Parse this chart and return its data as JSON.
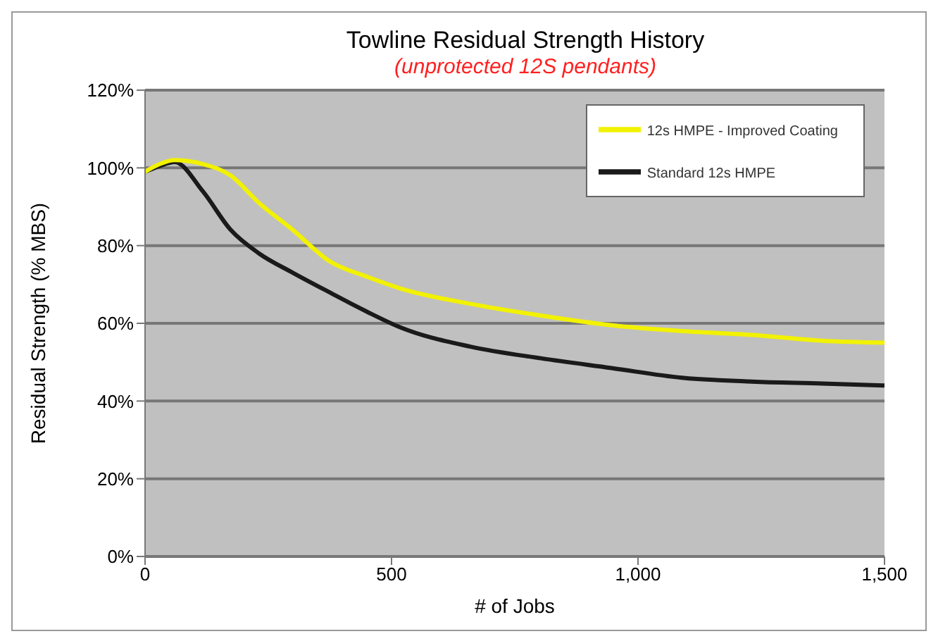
{
  "chart_data": {
    "type": "line",
    "title": "Towline Residual Strength History",
    "subtitle": "(unprotected 12S pendants)",
    "xlabel": "# of Jobs",
    "ylabel": "Residual Strength (% MBS)",
    "xlim": [
      0,
      1500
    ],
    "xticks": [
      0,
      500,
      {
        "value": 1000,
        "label": "1,000"
      },
      {
        "value": 1500,
        "label": "1,500"
      }
    ],
    "ylim": [
      0,
      120
    ],
    "yticks": [
      {
        "value": 0,
        "label": "0%"
      },
      {
        "value": 20,
        "label": "20%"
      },
      {
        "value": 40,
        "label": "40%"
      },
      {
        "value": 60,
        "label": "60%"
      },
      {
        "value": 80,
        "label": "80%"
      },
      {
        "value": 100,
        "label": "100%"
      },
      {
        "value": 120,
        "label": "120%"
      }
    ],
    "x": [
      0,
      30,
      60,
      117,
      174,
      231,
      300,
      374,
      450,
      517,
      660,
      803,
      946,
      1089,
      1231,
      1374,
      1500
    ],
    "series": [
      {
        "name": "Standard 12s HMPE",
        "color": "#1a1a1a",
        "values": [
          99,
          100.5,
          101.5,
          94,
          84,
          78,
          73,
          68,
          63,
          59,
          54,
          51,
          48.5,
          46,
          45,
          44.5,
          44
        ]
      },
      {
        "name": "12s HMPE - Improved Coating",
        "color": "#f2f200",
        "values": [
          99,
          101,
          102,
          101,
          98,
          91,
          84,
          76,
          72,
          69,
          65,
          62,
          59.5,
          58,
          57,
          55.5,
          55
        ]
      }
    ],
    "grid": "y",
    "legend": "top right",
    "marker": "none",
    "line_style": "solid"
  }
}
